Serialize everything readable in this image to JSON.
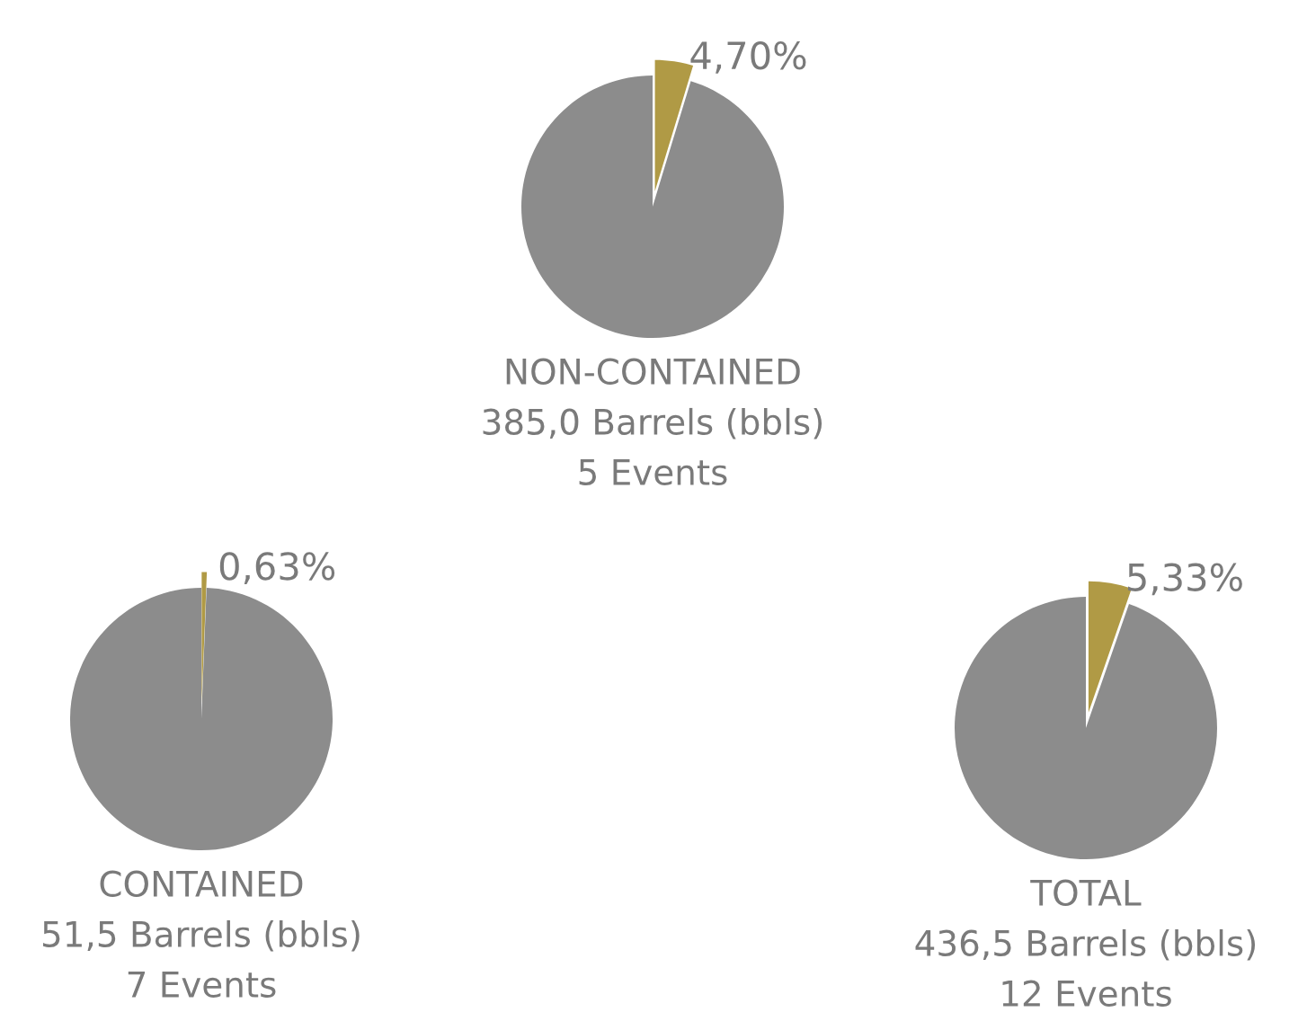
{
  "chart_data": [
    {
      "type": "pie",
      "title": "NON-CONTAINED",
      "annotations": [
        "385,0 Barrels (bbls)",
        "5 Events"
      ],
      "categories": [
        null,
        null
      ],
      "values": [
        4.7,
        95.3
      ],
      "colors": [
        "#b09a45",
        "#8c8c8c"
      ],
      "value_labels": [
        "4,70%",
        null
      ]
    },
    {
      "type": "pie",
      "title": "CONTAINED",
      "annotations": [
        "51,5 Barrels (bbls)",
        "7 Events"
      ],
      "categories": [
        null,
        null
      ],
      "values": [
        0.63,
        99.37
      ],
      "colors": [
        "#b09a45",
        "#8c8c8c"
      ],
      "value_labels": [
        "0,63%",
        null
      ]
    },
    {
      "type": "pie",
      "title": "TOTAL",
      "annotations": [
        "436,5 Barrels (bbls)",
        "12 Events"
      ],
      "categories": [
        null,
        null
      ],
      "values": [
        5.33,
        94.67
      ],
      "colors": [
        "#b09a45",
        "#8c8c8c"
      ],
      "value_labels": [
        "5,33%",
        null
      ]
    }
  ]
}
